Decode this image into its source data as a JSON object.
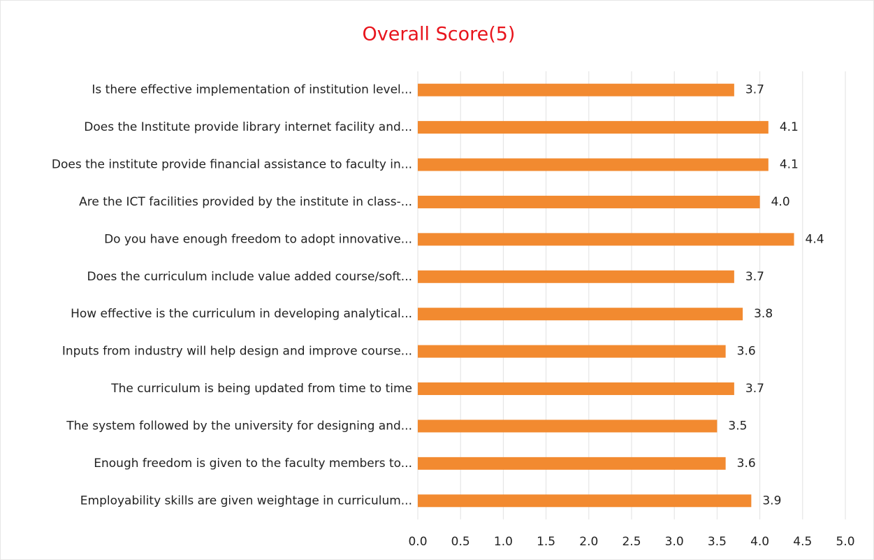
{
  "chart_data": {
    "type": "bar",
    "orientation": "horizontal",
    "title": "Overall Score(5)",
    "categories": [
      "Is there effective implementation of institution level...",
      "Does the Institute provide library internet facility and...",
      "Does the institute provide financial assistance to faculty in...",
      "Are the ICT facilities provided by the institute in class-...",
      "Do you have enough freedom to adopt innovative...",
      "Does the curriculum include value added course/soft...",
      "How effective is the curriculum in developing analytical...",
      "Inputs from industry will help design and improve course...",
      "The curriculum is being updated from time to time",
      "The system followed by the university for designing and...",
      "Enough freedom is given to the faculty members to...",
      "Employability skills are given weightage in curriculum..."
    ],
    "values": [
      3.7,
      4.1,
      4.1,
      4.0,
      4.4,
      3.7,
      3.8,
      3.6,
      3.7,
      3.5,
      3.6,
      3.9
    ],
    "value_labels": [
      "3.7",
      "4.1",
      "4.1",
      "4.0",
      "4.4",
      "3.7",
      "3.8",
      "3.6",
      "3.7",
      "3.5",
      "3.6",
      "3.9"
    ],
    "color": "#f28a30",
    "xlim": [
      0,
      5
    ],
    "xticks": [
      {
        "value": 0,
        "label": "0.0"
      },
      {
        "value": 0.5,
        "label": "0.5"
      },
      {
        "value": 1,
        "label": "1.0"
      },
      {
        "value": 1.5,
        "label": "1.5"
      },
      {
        "value": 2,
        "label": "2.0"
      },
      {
        "value": 2.5,
        "label": "2.5"
      },
      {
        "value": 3,
        "label": "3.0"
      },
      {
        "value": 3.5,
        "label": "3.5"
      },
      {
        "value": 4,
        "label": "4.0"
      },
      {
        "value": 4.5,
        "label": "4.5"
      },
      {
        "value": 5,
        "label": "5.0"
      }
    ],
    "grid": true
  }
}
